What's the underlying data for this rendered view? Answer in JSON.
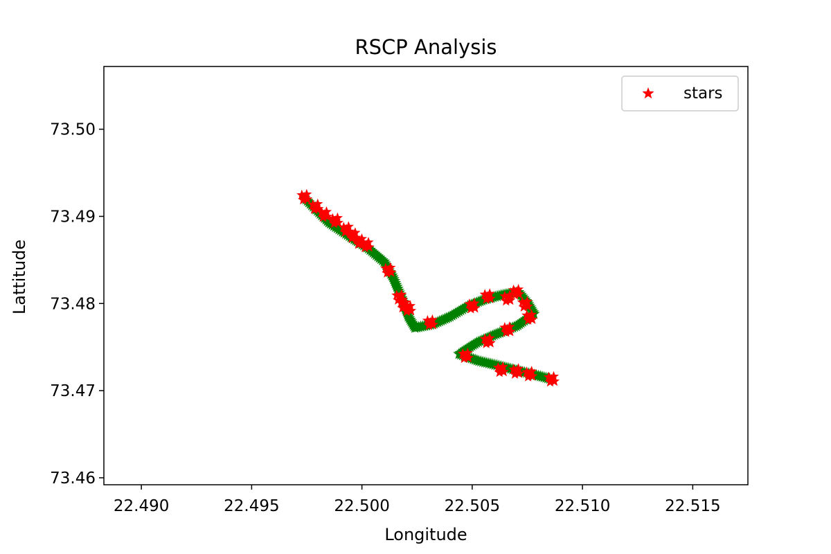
{
  "chart_data": {
    "type": "scatter",
    "title": "RSCP Analysis",
    "xlabel": "Longitude",
    "ylabel": "Lattitude",
    "xlim": [
      22.4883,
      22.5175
    ],
    "ylim": [
      73.4592,
      73.5072
    ],
    "x_ticks": [
      "22.490",
      "22.495",
      "22.500",
      "22.505",
      "22.510",
      "22.515"
    ],
    "y_ticks": [
      "73.46",
      "73.47",
      "73.48",
      "73.49",
      "73.50"
    ],
    "legend": {
      "position": "top-right",
      "entries": [
        "stars"
      ]
    },
    "grid": false,
    "series": [
      {
        "marker": "star",
        "color": "#008000",
        "path": [
          [
            22.4974,
            73.4921
          ],
          [
            22.4985,
            73.4893
          ],
          [
            22.4995,
            73.4876
          ],
          [
            22.5003,
            73.4863
          ],
          [
            22.501,
            73.4848
          ],
          [
            22.5014,
            73.483
          ],
          [
            22.5018,
            73.4806
          ],
          [
            22.5021,
            73.4785
          ],
          [
            22.5024,
            73.4772
          ],
          [
            22.5032,
            73.4776
          ],
          [
            22.504,
            73.4785
          ],
          [
            22.5048,
            73.4797
          ],
          [
            22.5056,
            73.4805
          ],
          [
            22.5064,
            73.481
          ],
          [
            22.5071,
            73.4813
          ],
          [
            22.5075,
            73.4801
          ],
          [
            22.5078,
            73.4788
          ],
          [
            22.507,
            73.4774
          ],
          [
            22.506,
            73.4764
          ],
          [
            22.5052,
            73.4755
          ],
          [
            22.5044,
            73.4742
          ],
          [
            22.5053,
            73.4734
          ],
          [
            22.5063,
            73.4728
          ],
          [
            22.5072,
            73.4722
          ],
          [
            22.508,
            73.4717
          ],
          [
            22.5086,
            73.4713
          ]
        ]
      },
      {
        "name": "stars",
        "marker": "star",
        "color": "#ff0000",
        "points": [
          [
            22.4974,
            73.4922
          ],
          [
            22.4979,
            73.4911
          ],
          [
            22.4983,
            73.4902
          ],
          [
            22.4988,
            73.4895
          ],
          [
            22.4993,
            73.4885
          ],
          [
            22.4996,
            73.4878
          ],
          [
            22.4999,
            73.4871
          ],
          [
            22.5002,
            73.4867
          ],
          [
            22.5012,
            73.4838
          ],
          [
            22.5017,
            73.4807
          ],
          [
            22.5019,
            73.4798
          ],
          [
            22.5021,
            73.4794
          ],
          [
            22.5031,
            73.4778
          ],
          [
            22.505,
            73.4797
          ],
          [
            22.5057,
            73.4808
          ],
          [
            22.5066,
            73.4806
          ],
          [
            22.507,
            73.4813
          ],
          [
            22.5074,
            73.4799
          ],
          [
            22.5076,
            73.4784
          ],
          [
            22.5066,
            73.477
          ],
          [
            22.5057,
            73.4757
          ],
          [
            22.5047,
            73.474
          ],
          [
            22.5063,
            73.4724
          ],
          [
            22.507,
            73.4722
          ],
          [
            22.5076,
            73.4719
          ],
          [
            22.5086,
            73.4713
          ]
        ]
      }
    ]
  }
}
